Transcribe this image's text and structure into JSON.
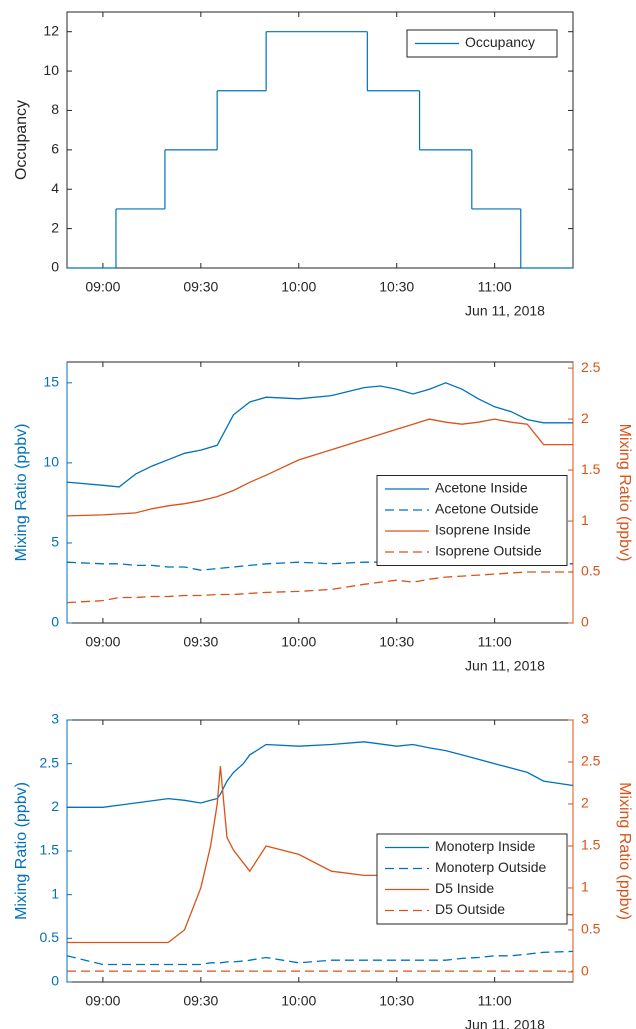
{
  "chart_data": [
    {
      "type": "step",
      "step": "post",
      "ylabel": "Occupancy",
      "x_date_label": "Jun 11, 2018",
      "xlim": [
        "08:49",
        "11:24"
      ],
      "xticks": [
        "09:00",
        "09:30",
        "10:00",
        "10:30",
        "11:00"
      ],
      "ylim": [
        0,
        13
      ],
      "yticks": [
        0,
        2,
        4,
        6,
        8,
        10,
        12
      ],
      "legend": "upper right",
      "x": [
        "08:49",
        "09:04",
        "09:19",
        "09:35",
        "09:50",
        "10:21",
        "10:37",
        "10:53",
        "11:08",
        "11:24"
      ],
      "series": [
        {
          "name": "Occupancy",
          "color": "#0072bd",
          "linestyle": "solid",
          "values": [
            0,
            3,
            6,
            9,
            12,
            9,
            6,
            3,
            0,
            0
          ]
        }
      ]
    },
    {
      "type": "line",
      "ylabel": "Mixing Ratio (ppbv)",
      "y2label": "Mixing Ratio (ppbv)",
      "x_date_label": "Jun 11, 2018",
      "xlim": [
        "08:49",
        "11:24"
      ],
      "xticks": [
        "09:00",
        "09:30",
        "10:00",
        "10:30",
        "11:00"
      ],
      "ylim": [
        0,
        16.3
      ],
      "yticks": [
        0,
        5,
        10,
        15
      ],
      "y2lim": [
        0,
        2.56
      ],
      "y2ticks": [
        0,
        0.5,
        1,
        1.5,
        2,
        2.5
      ],
      "ylabel_color": "#0072bd",
      "y2label_color": "#d95319",
      "legend": "center right",
      "x": [
        "08:49",
        "09:00",
        "09:05",
        "09:10",
        "09:15",
        "09:20",
        "09:25",
        "09:30",
        "09:35",
        "09:40",
        "09:45",
        "09:50",
        "10:00",
        "10:10",
        "10:20",
        "10:25",
        "10:30",
        "10:35",
        "10:40",
        "10:45",
        "10:50",
        "10:55",
        "11:00",
        "11:05",
        "11:10",
        "11:15",
        "11:24"
      ],
      "series": [
        {
          "name": "Acetone Inside",
          "color": "#0072bd",
          "linestyle": "solid",
          "axis": "y",
          "values": [
            8.8,
            8.6,
            8.5,
            9.3,
            9.8,
            10.2,
            10.6,
            10.8,
            11.1,
            13.0,
            13.8,
            14.1,
            14.0,
            14.2,
            14.7,
            14.8,
            14.6,
            14.3,
            14.6,
            15.0,
            14.6,
            14.0,
            13.5,
            13.2,
            12.7,
            12.5,
            12.5
          ]
        },
        {
          "name": "Acetone Outside",
          "color": "#0072bd",
          "linestyle": "dashed",
          "axis": "y",
          "values": [
            3.8,
            3.7,
            3.7,
            3.6,
            3.6,
            3.5,
            3.5,
            3.3,
            3.4,
            3.5,
            3.6,
            3.7,
            3.8,
            3.7,
            3.8,
            3.8,
            3.8,
            3.8,
            3.8,
            3.9,
            3.8,
            3.8,
            3.8,
            3.7,
            3.7,
            3.7,
            3.7
          ]
        },
        {
          "name": "Isoprene Inside",
          "color": "#d95319",
          "linestyle": "solid",
          "axis": "y2",
          "values": [
            1.05,
            1.06,
            1.07,
            1.08,
            1.12,
            1.15,
            1.17,
            1.2,
            1.24,
            1.3,
            1.38,
            1.45,
            1.6,
            1.7,
            1.8,
            1.85,
            1.9,
            1.95,
            2.0,
            1.97,
            1.95,
            1.97,
            2.0,
            1.97,
            1.95,
            1.75,
            1.75
          ]
        },
        {
          "name": "Isoprene Outside",
          "color": "#d95319",
          "linestyle": "dashed",
          "axis": "y2",
          "values": [
            0.2,
            0.22,
            0.25,
            0.25,
            0.26,
            0.26,
            0.27,
            0.27,
            0.28,
            0.28,
            0.29,
            0.3,
            0.31,
            0.33,
            0.38,
            0.4,
            0.42,
            0.4,
            0.43,
            0.45,
            0.46,
            0.47,
            0.48,
            0.49,
            0.5,
            0.5,
            0.5
          ]
        }
      ]
    },
    {
      "type": "line",
      "ylabel": "Mixing Ratio (ppbv)",
      "y2label": "Mixing Ratio (ppbv)",
      "x_date_label": "Jun 11, 2018",
      "xlim": [
        "08:49",
        "11:24"
      ],
      "xticks": [
        "09:00",
        "09:30",
        "10:00",
        "10:30",
        "11:00"
      ],
      "ylim": [
        0,
        3
      ],
      "yticks": [
        0,
        0.5,
        1,
        1.5,
        2,
        2.5,
        3
      ],
      "y2lim": [
        -0.12,
        3
      ],
      "y2ticks": [
        0,
        0.5,
        1,
        1.5,
        2,
        2.5,
        3
      ],
      "ylabel_color": "#0072bd",
      "y2label_color": "#d95319",
      "legend": "center right",
      "x": [
        "08:49",
        "09:00",
        "09:10",
        "09:20",
        "09:25",
        "09:30",
        "09:33",
        "09:35",
        "09:36",
        "09:38",
        "09:40",
        "09:43",
        "09:45",
        "09:50",
        "10:00",
        "10:10",
        "10:20",
        "10:30",
        "10:35",
        "10:40",
        "10:45",
        "10:50",
        "10:55",
        "11:00",
        "11:05",
        "11:10",
        "11:15",
        "11:24"
      ],
      "series": [
        {
          "name": "Monoterp Inside",
          "color": "#0072bd",
          "linestyle": "solid",
          "axis": "y",
          "values": [
            2.0,
            2.0,
            2.05,
            2.1,
            2.08,
            2.05,
            2.08,
            2.1,
            2.15,
            2.3,
            2.4,
            2.5,
            2.6,
            2.72,
            2.7,
            2.72,
            2.75,
            2.7,
            2.72,
            2.68,
            2.65,
            2.6,
            2.55,
            2.5,
            2.45,
            2.4,
            2.3,
            2.25
          ]
        },
        {
          "name": "Monoterp Outside",
          "color": "#0072bd",
          "linestyle": "dashed",
          "axis": "y",
          "values": [
            0.3,
            0.2,
            0.2,
            0.2,
            0.2,
            0.2,
            0.22,
            0.22,
            0.22,
            0.23,
            0.23,
            0.24,
            0.25,
            0.28,
            0.22,
            0.25,
            0.25,
            0.25,
            0.25,
            0.25,
            0.25,
            0.27,
            0.28,
            0.3,
            0.3,
            0.32,
            0.34,
            0.35
          ]
        },
        {
          "name": "D5 Inside",
          "color": "#d95319",
          "linestyle": "solid",
          "axis": "y2",
          "values": [
            0.35,
            0.35,
            0.35,
            0.35,
            0.5,
            1.0,
            1.5,
            2.0,
            2.45,
            1.6,
            1.45,
            1.3,
            1.2,
            1.5,
            1.4,
            1.2,
            1.15,
            1.15,
            1.2,
            1.1,
            1.0,
            0.95,
            0.9,
            0.85,
            0.8,
            0.75,
            0.7,
            0.68
          ]
        },
        {
          "name": "D5 Outside",
          "color": "#d95319",
          "linestyle": "dashed",
          "axis": "y2",
          "values": [
            0.01,
            0.01,
            0.01,
            0.01,
            0.01,
            0.01,
            0.01,
            0.01,
            0.01,
            0.01,
            0.01,
            0.01,
            0.01,
            0.01,
            0.01,
            0.01,
            0.01,
            0.01,
            0.01,
            0.01,
            0.01,
            0.01,
            0.01,
            0.01,
            0.01,
            0.01,
            0.01,
            0.01
          ]
        }
      ]
    }
  ]
}
